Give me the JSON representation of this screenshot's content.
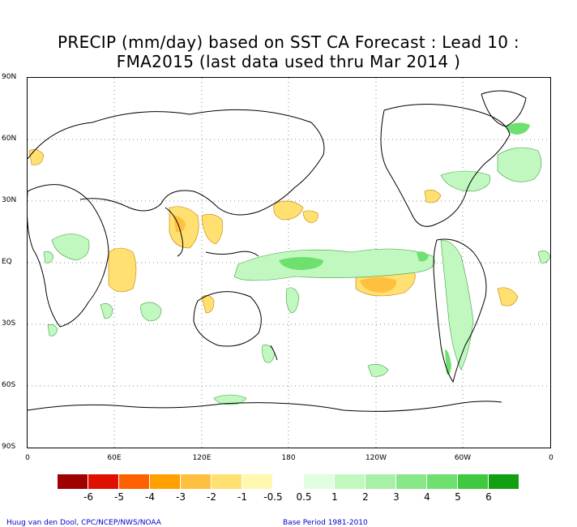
{
  "title": {
    "line1": "PRECIP (mm/day) based on SST CA Forecast : Lead 10 :",
    "line2": "FMA2015 (last data used thru Mar 2014 )"
  },
  "axes": {
    "lat_labels": [
      "90N",
      "60N",
      "30N",
      "EQ",
      "30S",
      "60S",
      "90S"
    ],
    "lon_labels": [
      "0",
      "60E",
      "120E",
      "180",
      "120W",
      "60W",
      "0"
    ]
  },
  "legend": {
    "colors": [
      "#a00000",
      "#e01000",
      "#ff6000",
      "#ffa000",
      "#ffc040",
      "#ffe070",
      "#fff8b0",
      "#ffffff",
      "#e0ffe0",
      "#c0f8c0",
      "#a8f0a8",
      "#88e888",
      "#6ee06e",
      "#40c840",
      "#10a010"
    ],
    "labels": [
      "-6",
      "-5",
      "-4",
      "-3",
      "-2",
      "-1",
      "-0.5",
      "0.5",
      "1",
      "2",
      "3",
      "4",
      "5",
      "6"
    ]
  },
  "footer": {
    "credit": "Huug van den Dool, CPC/NCEP/NWS/NOAA",
    "base_period": "Base Period 1981-2010"
  }
}
